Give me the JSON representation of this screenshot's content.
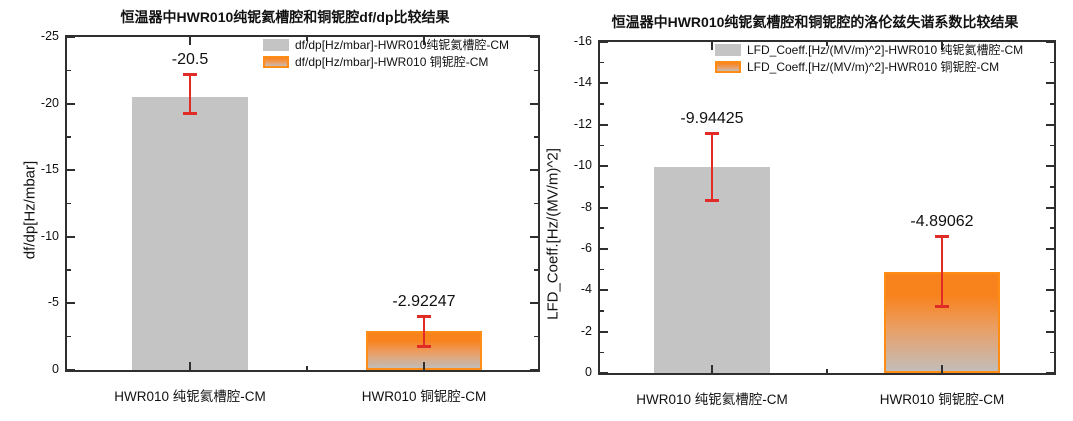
{
  "colors": {
    "axis": "#2f2f2f",
    "text": "#111111",
    "bar_gray": "#c4c4c4",
    "bar_orange_top": "#f8821c",
    "bar_orange_mid": "#eb9e63",
    "bar_orange_bottom": "#c2bdb9",
    "bar_orange_border": "#ff8c14",
    "error_bar": "#e02b26"
  },
  "chart_data": [
    {
      "type": "bar",
      "title": "恒温器中HWR010纯铌氦槽腔和铜铌腔df/dp比较结果",
      "xlabel": "",
      "ylabel": "df/dp[Hz/mbar]",
      "categories": [
        "HWR010 纯铌氦槽腔-CM",
        "HWR010 铜铌腔-CM"
      ],
      "values": [
        -20.5,
        -2.92247
      ],
      "value_labels": [
        "-20.5",
        "-2.92247"
      ],
      "error_high": [
        -22.2,
        -4.08
      ],
      "error_low": [
        -19.2,
        -1.72
      ],
      "ylim": [
        0,
        -25
      ],
      "ytick_step": 5,
      "yminor_step": 2.5,
      "grid": false,
      "legend_position": "top-right-inside",
      "bar_styles": [
        "gray",
        "orange"
      ],
      "legend": [
        {
          "label": "df/dp[Hz/mbar]-HWR010纯铌氦槽腔-CM",
          "swatch": "gray"
        },
        {
          "label": "df/dp[Hz/mbar]-HWR010 铜铌腔-CM",
          "swatch": "orange"
        }
      ]
    },
    {
      "type": "bar",
      "title": "恒温器中HWR010纯铌氦槽腔和铜铌腔的洛伦兹失谐系数比较结果",
      "xlabel": "",
      "ylabel": "LFD_Coeff.[Hz/(MV/m)^2]",
      "categories": [
        "HWR010 纯铌氦槽腔-CM",
        "HWR010 铜铌腔-CM"
      ],
      "values": [
        -9.94425,
        -4.89062
      ],
      "value_labels": [
        "-9.94425",
        "-4.89062"
      ],
      "error_high": [
        -11.6,
        -6.6
      ],
      "error_low": [
        -8.3,
        -3.2
      ],
      "ylim": [
        0,
        -16
      ],
      "ytick_step": 2,
      "yminor_step": 1,
      "grid": false,
      "legend_position": "top-right-inside",
      "bar_styles": [
        "gray",
        "orange"
      ],
      "legend": [
        {
          "label": "LFD_Coeff.[Hz/(MV/m)^2]-HWR010 纯铌氦槽腔-CM",
          "swatch": "gray"
        },
        {
          "label": "LFD_Coeff.[Hz/(MV/m)^2]-HWR010 铜铌腔-CM",
          "swatch": "orange"
        }
      ]
    }
  ]
}
